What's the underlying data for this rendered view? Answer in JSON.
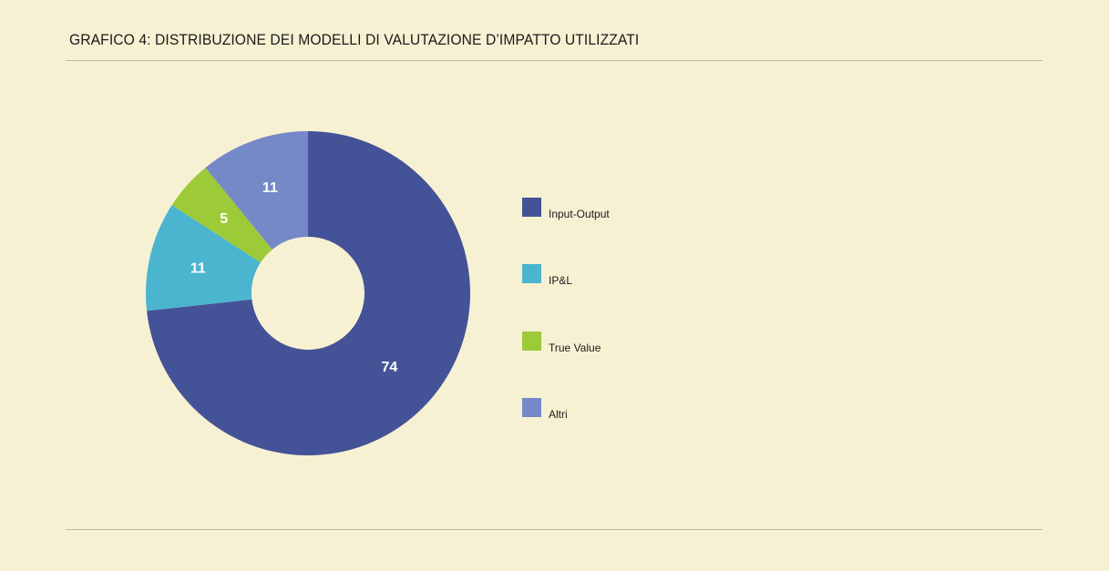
{
  "title": "GRAFICO 4: DISTRIBUZIONE DEI MODELLI DI VALUTAZIONE D’IMPATTO UTILIZZATI",
  "chart_data": {
    "type": "pie",
    "variant": "donut",
    "title": "GRAFICO 4: DISTRIBUZIONE DEI MODELLI DI VALUTAZIONE D’IMPATTO UTILIZZATI",
    "categories": [
      "Input-Output",
      "IP&L",
      "True Value",
      "Altri"
    ],
    "values": [
      74,
      11,
      5,
      11
    ],
    "colors": [
      "#445297",
      "#4bb5cf",
      "#9dca38",
      "#7589c9"
    ],
    "data_labels": [
      "74",
      "11",
      "5",
      "11"
    ],
    "legend_position": "right",
    "start_angle": "12 o'clock, clockwise"
  },
  "legend": {
    "items": [
      {
        "label": "Input-Output",
        "color": "#445297"
      },
      {
        "label": "IP&L",
        "color": "#4bb5cf"
      },
      {
        "label": "True Value",
        "color": "#9dca38"
      },
      {
        "label": "Altri",
        "color": "#7589c9"
      }
    ]
  },
  "colors": {
    "background": "#f7f1d3",
    "rule": "#b9b6a6"
  }
}
